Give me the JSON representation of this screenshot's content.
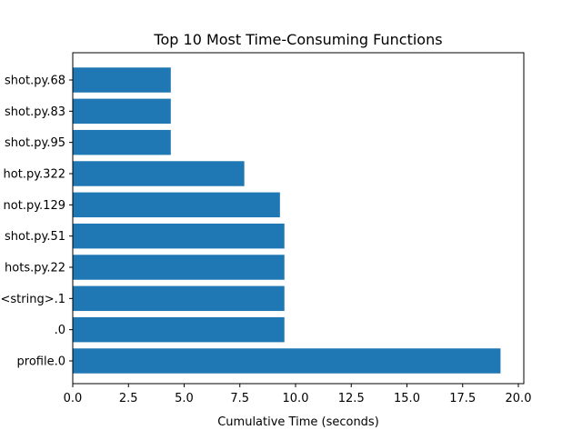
{
  "chart_data": {
    "type": "bar",
    "orientation": "horizontal",
    "title": "Top 10 Most Time-Consuming Functions",
    "xlabel": "Cumulative Time (seconds)",
    "ylabel": "",
    "xlim": [
      0,
      20.0
    ],
    "xticks": [
      0.0,
      2.5,
      5.0,
      7.5,
      10.0,
      12.5,
      15.0,
      17.5,
      20.0
    ],
    "xtick_labels": [
      "0.0",
      "2.5",
      "5.0",
      "7.5",
      "10.0",
      "12.5",
      "15.0",
      "17.5",
      "20.0"
    ],
    "grid": false,
    "legend": "none",
    "bar_color": "#1f77b4",
    "categories": [
      "profile.0",
      ".0",
      "<string>.1",
      "hots.py.22",
      "shot.py.51",
      "not.py.129",
      "hot.py.322",
      "shot.py.95",
      "shot.py.83",
      "shot.py.68"
    ],
    "values": [
      19.2,
      9.5,
      9.5,
      9.5,
      9.5,
      9.3,
      7.7,
      4.4,
      4.4,
      4.4
    ]
  }
}
